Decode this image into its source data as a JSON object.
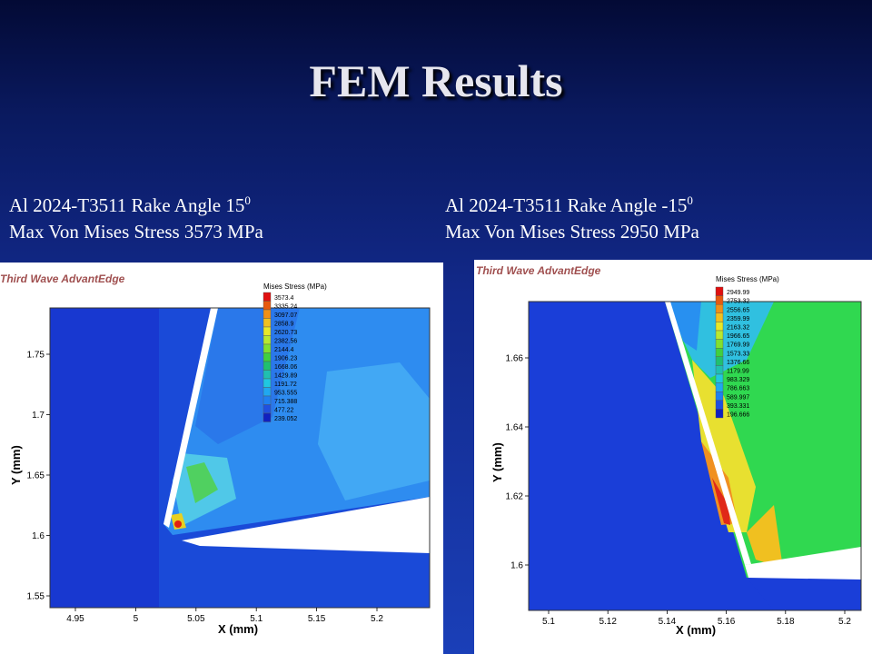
{
  "slide": {
    "title": "FEM Results"
  },
  "left": {
    "caption_line1": "Al 2024-T3511 Rake Angle  15",
    "caption_sup": "0",
    "caption_line2": "Max Von Mises Stress 3573 MPa",
    "watermark": "Third Wave AdvantEdge",
    "legend_title": "Mises Stress (MPa)",
    "legend_values": [
      "3573.4",
      "3335.24",
      "3097.07",
      "2858.9",
      "2620.73",
      "2382.56",
      "2144.4",
      "1906.23",
      "1668.06",
      "1429.89",
      "1191.72",
      "953.555",
      "715.388",
      "477.22",
      "239.052"
    ],
    "legend_colors": [
      "#e01010",
      "#e85a10",
      "#f09018",
      "#f0c020",
      "#e8e828",
      "#b8e830",
      "#80e030",
      "#40d040",
      "#20c070",
      "#20c0b0",
      "#20c8e0",
      "#20a8f0",
      "#2080f0",
      "#2050e0",
      "#1020c0"
    ],
    "xlabel": "X (mm)",
    "ylabel": "Y (mm)",
    "x_ticks": [
      "4.95",
      "5",
      "5.05",
      "5.1",
      "5.15",
      "5.2"
    ],
    "y_ticks": [
      "1.75",
      "1.7",
      "1.65",
      "1.6",
      "1.55"
    ]
  },
  "right": {
    "caption_line1": "Al 2024-T3511 Rake Angle  -15",
    "caption_sup": "0",
    "caption_line2": "Max Von Mises Stress 2950 MPa",
    "watermark": "Third Wave AdvantEdge",
    "legend_title": "Mises Stress (MPa)",
    "legend_values": [
      "2949.99",
      "2753.32",
      "2556.65",
      "2359.99",
      "2163.32",
      "1966.65",
      "1769.99",
      "1573.33",
      "1376.66",
      "1179.99",
      "983.329",
      "786.663",
      "589.997",
      "393.331",
      "196.666"
    ],
    "legend_colors": [
      "#e01010",
      "#e85a10",
      "#f09018",
      "#f0c020",
      "#e8e828",
      "#b8e830",
      "#80e030",
      "#40d040",
      "#20c070",
      "#20c0b0",
      "#20c8e0",
      "#20a8f0",
      "#2080f0",
      "#2050e0",
      "#1020c0"
    ],
    "xlabel": "X (mm)",
    "ylabel": "Y (mm)",
    "x_ticks": [
      "5.1",
      "5.12",
      "5.14",
      "5.16",
      "5.18",
      "5.2"
    ],
    "y_ticks": [
      "1.66",
      "1.64",
      "1.62",
      "1.6"
    ]
  }
}
